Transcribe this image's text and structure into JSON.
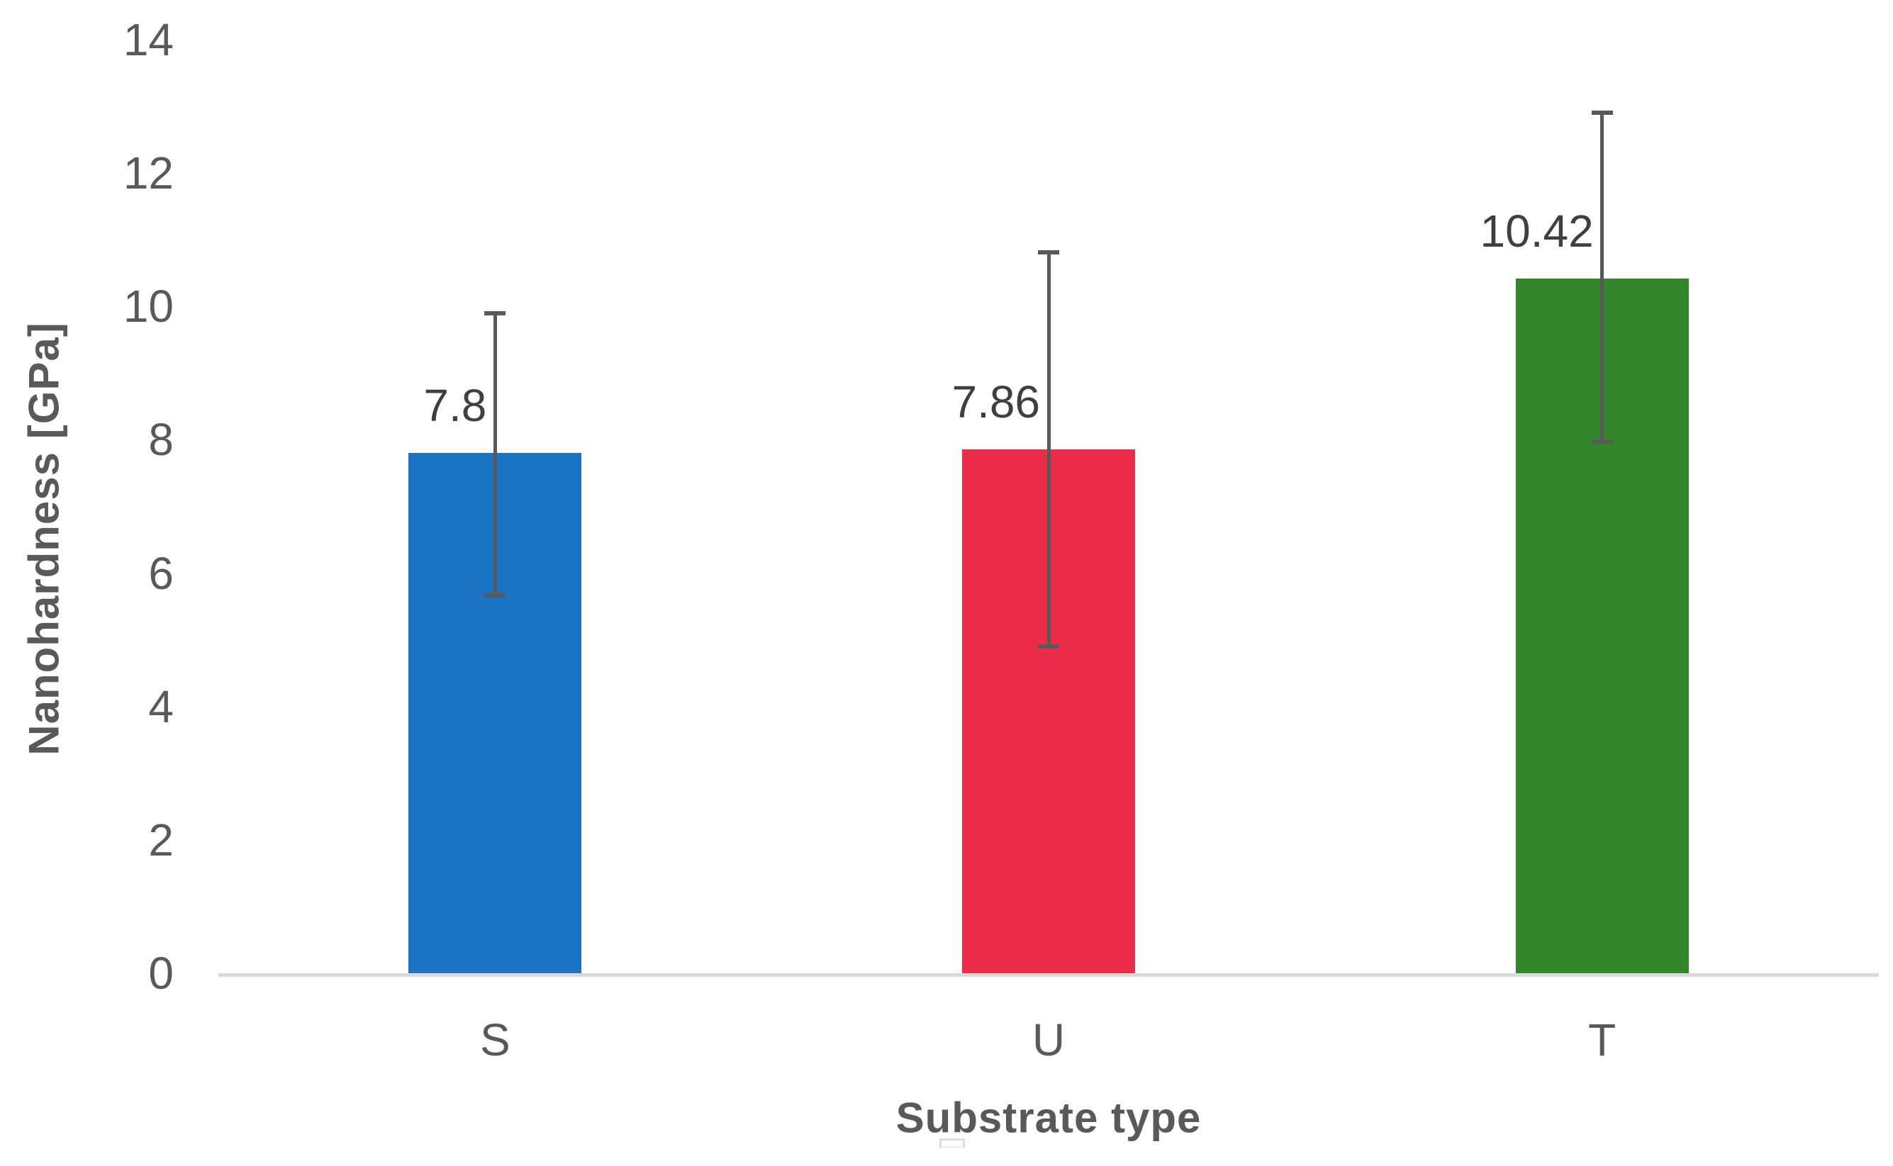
{
  "chart_data": {
    "type": "bar",
    "title": "",
    "categories": [
      "S",
      "U",
      "T"
    ],
    "values": [
      7.8,
      7.86,
      10.42
    ],
    "data_labels": [
      "7.8",
      "7.86",
      "10.42"
    ],
    "bar_colors": [
      "#1b73c6",
      "#ec2d49",
      "#338529"
    ],
    "error_bars": [
      {
        "plus": 2.1,
        "minus": 2.13
      },
      {
        "plus": 2.95,
        "minus": 2.96
      },
      {
        "plus": 2.48,
        "minus": 2.45
      }
    ],
    "error_bar_color": "#595959",
    "xlabel": "Substrate type",
    "ylabel": "Nanohardness [GPa]",
    "ylim": [
      0,
      14
    ],
    "ytick_values": [
      0,
      2,
      4,
      6,
      8,
      10,
      12,
      14
    ],
    "ytick_labels": [
      "0",
      "2",
      "4",
      "6",
      "8",
      "10",
      "12",
      "14"
    ],
    "grid": false,
    "legend": "empty legend placeholder at bottom center",
    "axis_line_color": "#d9d9d9",
    "tick_label_color": "#595959",
    "data_label_color": "#3f3f3f",
    "background_color": "#ffffff"
  }
}
